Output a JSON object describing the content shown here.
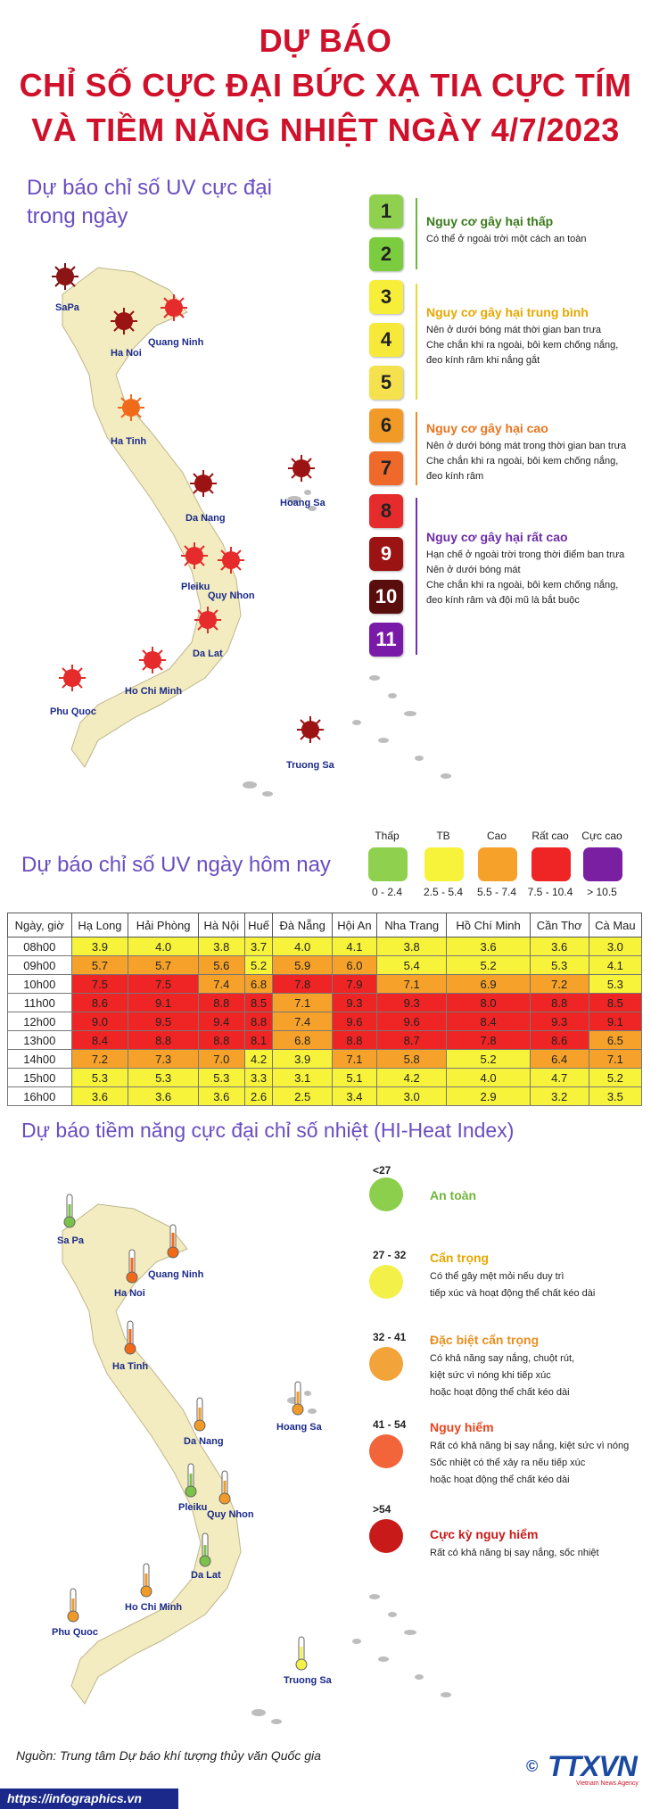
{
  "header": {
    "line1": "DỰ BÁO",
    "line2": "CHỈ SỐ CỰC ĐẠI BỨC XẠ TIA CỰC TÍM",
    "line3": "VÀ TIỀM NĂNG NHIỆT NGÀY 4/7/2023"
  },
  "uv_map": {
    "title_line1": "Dự báo chỉ số UV cực đại",
    "title_line2": "trong ngày",
    "cities": [
      "SaPa",
      "Quang Ninh",
      "Ha Noi",
      "Ha Tinh",
      "Hoang Sa",
      "Da Nang",
      "Pleiku",
      "Quy Nhon",
      "Da Lat",
      "Ho Chi Minh",
      "Phu Quoc",
      "Truong Sa"
    ]
  },
  "uv_scale": {
    "levels": [
      "1",
      "2",
      "3",
      "4",
      "5",
      "6",
      "7",
      "8",
      "9",
      "10",
      "11"
    ],
    "colors": [
      "#8fd14f",
      "#7ccc3f",
      "#f7ee3a",
      "#f6e93a",
      "#f5e14e",
      "#f19a27",
      "#ef6a2a",
      "#e52b2b",
      "#9b1313",
      "#5a0d0d",
      "#7a1aa8"
    ],
    "groups": [
      {
        "title": "Nguy cơ gây hại thấp",
        "color": "#3a7a1c",
        "desc": [
          "Có thể ở ngoài trời một cách an toàn"
        ],
        "line_color": "#6cb83a"
      },
      {
        "title": "Nguy cơ gây hại trung bình",
        "color": "#e6a800",
        "desc": [
          "Nên ở dưới bóng mát thời gian ban trưa",
          "Che chắn khi ra ngoài, bôi kem chống nắng,",
          "đeo kính râm khi nắng gắt"
        ],
        "line_color": "#e9d63a"
      },
      {
        "title": "Nguy cơ gây hại cao",
        "color": "#e8751f",
        "desc": [
          "Nên ở dưới bóng mát trong thời gian ban trưa",
          "Che chắn khi ra ngoài, bôi kem chống nắng,",
          "đeo kính râm"
        ],
        "line_color": "#ef8a2a"
      },
      {
        "title": "Nguy cơ gây hại rất cao",
        "color": "#6d2ca8",
        "desc": [
          "Hạn chế ở ngoài trời trong thời điểm ban trưa",
          "Nên ở dưới bóng mát",
          "Che chắn khi ra ngoài, bôi kem chống nắng,",
          "đeo kính râm và đội mũ là bắt buộc"
        ],
        "line_color": "#7a2cb0"
      }
    ]
  },
  "uv_today": {
    "title": "Dự báo chỉ số UV ngày hôm nay",
    "legend": [
      {
        "name": "Thấp",
        "range": "0 - 2.4",
        "color": "#8fd14f"
      },
      {
        "name": "TB",
        "range": "2.5 - 5.4",
        "color": "#f7f23a"
      },
      {
        "name": "Cao",
        "range": "5.5 - 7.4",
        "color": "#f6a22a"
      },
      {
        "name": "Rất cao",
        "range": "7.5 - 10.4",
        "color": "#ef2424"
      },
      {
        "name": "Cực cao",
        "range": "> 10.5",
        "color": "#7b1fa2"
      }
    ]
  },
  "table": {
    "headers": [
      "Ngày, giờ",
      "Hạ Long",
      "Hải Phòng",
      "Hà Nội",
      "Huế",
      "Đà Nẵng",
      "Hội An",
      "Nha Trang",
      "Hồ Chí Minh",
      "Cần Thơ",
      "Cà Mau"
    ],
    "rows": [
      [
        "08h00",
        "3.9",
        "4.0",
        "3.8",
        "3.7",
        "4.0",
        "4.1",
        "3.8",
        "3.6",
        "3.6",
        "3.0"
      ],
      [
        "09h00",
        "5.7",
        "5.7",
        "5.6",
        "5.2",
        "5.9",
        "6.0",
        "5.4",
        "5.2",
        "5.3",
        "4.1"
      ],
      [
        "10h00",
        "7.5",
        "7.5",
        "7.4",
        "6.8",
        "7.8",
        "7.9",
        "7.1",
        "6.9",
        "7.2",
        "5.3"
      ],
      [
        "11h00",
        "8.6",
        "9.1",
        "8.8",
        "8.5",
        "7.1",
        "9.3",
        "9.3",
        "8.0",
        "8.8",
        "8.5"
      ],
      [
        "12h00",
        "9.0",
        "9.5",
        "9.4",
        "8.8",
        "7.4",
        "9.6",
        "9.6",
        "8.4",
        "9.3",
        "9.1"
      ],
      [
        "13h00",
        "8.4",
        "8.8",
        "8.8",
        "8.1",
        "6.8",
        "8.8",
        "8.7",
        "7.8",
        "8.6",
        "6.5"
      ],
      [
        "14h00",
        "7.2",
        "7.3",
        "7.0",
        "4.2",
        "3.9",
        "7.1",
        "5.8",
        "5.2",
        "6.4",
        "7.1"
      ],
      [
        "15h00",
        "5.3",
        "5.3",
        "5.3",
        "3.3",
        "3.1",
        "5.1",
        "4.2",
        "4.0",
        "4.7",
        "5.2"
      ],
      [
        "16h00",
        "3.6",
        "3.6",
        "3.6",
        "2.6",
        "2.5",
        "3.4",
        "3.0",
        "2.9",
        "3.2",
        "3.5"
      ]
    ]
  },
  "heat": {
    "title": "Dự báo tiềm năng cực đại chỉ số nhiệt (HI-Heat Index)",
    "cities": [
      "Sa Pa",
      "Ha Noi",
      "Quang Ninh",
      "Ha Tinh",
      "Hoang Sa",
      "Da Nang",
      "Pleiku",
      "Quy Nhon",
      "Da Lat",
      "Ho Chi Minh",
      "Phu Quoc",
      "Truong Sa"
    ],
    "levels": [
      {
        "range": "<27",
        "title": "An toàn",
        "color": "#8ccf4d",
        "title_color": "#6fb63a",
        "desc": []
      },
      {
        "range": "27 - 32",
        "title": "Cẩn trọng",
        "color": "#f3f04a",
        "title_color": "#e6a800",
        "desc": [
          "Có thể gây mệt mỏi nếu duy trì",
          "tiếp xúc và hoạt động thể chất kéo dài"
        ]
      },
      {
        "range": "32 - 41",
        "title": "Đặc biệt cẩn trọng",
        "color": "#f2a43a",
        "title_color": "#e8901f",
        "desc": [
          "Có khả năng say nắng, chuột rút,",
          "kiệt sức vì nóng khi tiếp xúc",
          "hoặc hoạt động thể chất kéo dài"
        ]
      },
      {
        "range": "41 - 54",
        "title": "Nguy hiểm",
        "color": "#f2653a",
        "title_color": "#e8451f",
        "desc": [
          "Rất có khả năng bị say nắng, kiệt sức vì nóng",
          "Sốc nhiệt có thể xảy ra nếu tiếp xúc",
          "hoặc hoạt động thể chất kéo dài"
        ]
      },
      {
        "range": ">54",
        "title": "Cực kỳ nguy hiểm",
        "color": "#c91a1a",
        "title_color": "#c91a1a",
        "desc": [
          "Rất có khả năng bị say nắng, sốc nhiệt"
        ]
      }
    ]
  },
  "footer": {
    "source": "Nguồn: Trung tâm Dự báo khí tượng thủy văn Quốc gia",
    "url": "https://infographics.vn",
    "logo": "TTXVN",
    "logo_sub": "Vietnam News Agency",
    "copyright": "©"
  },
  "colors": {
    "low": "#8fd14f",
    "tb": "#f7f23a",
    "cao": "#f6a22a",
    "rat_cao": "#ef2424",
    "cuc_cao": "#7b1fa2"
  }
}
